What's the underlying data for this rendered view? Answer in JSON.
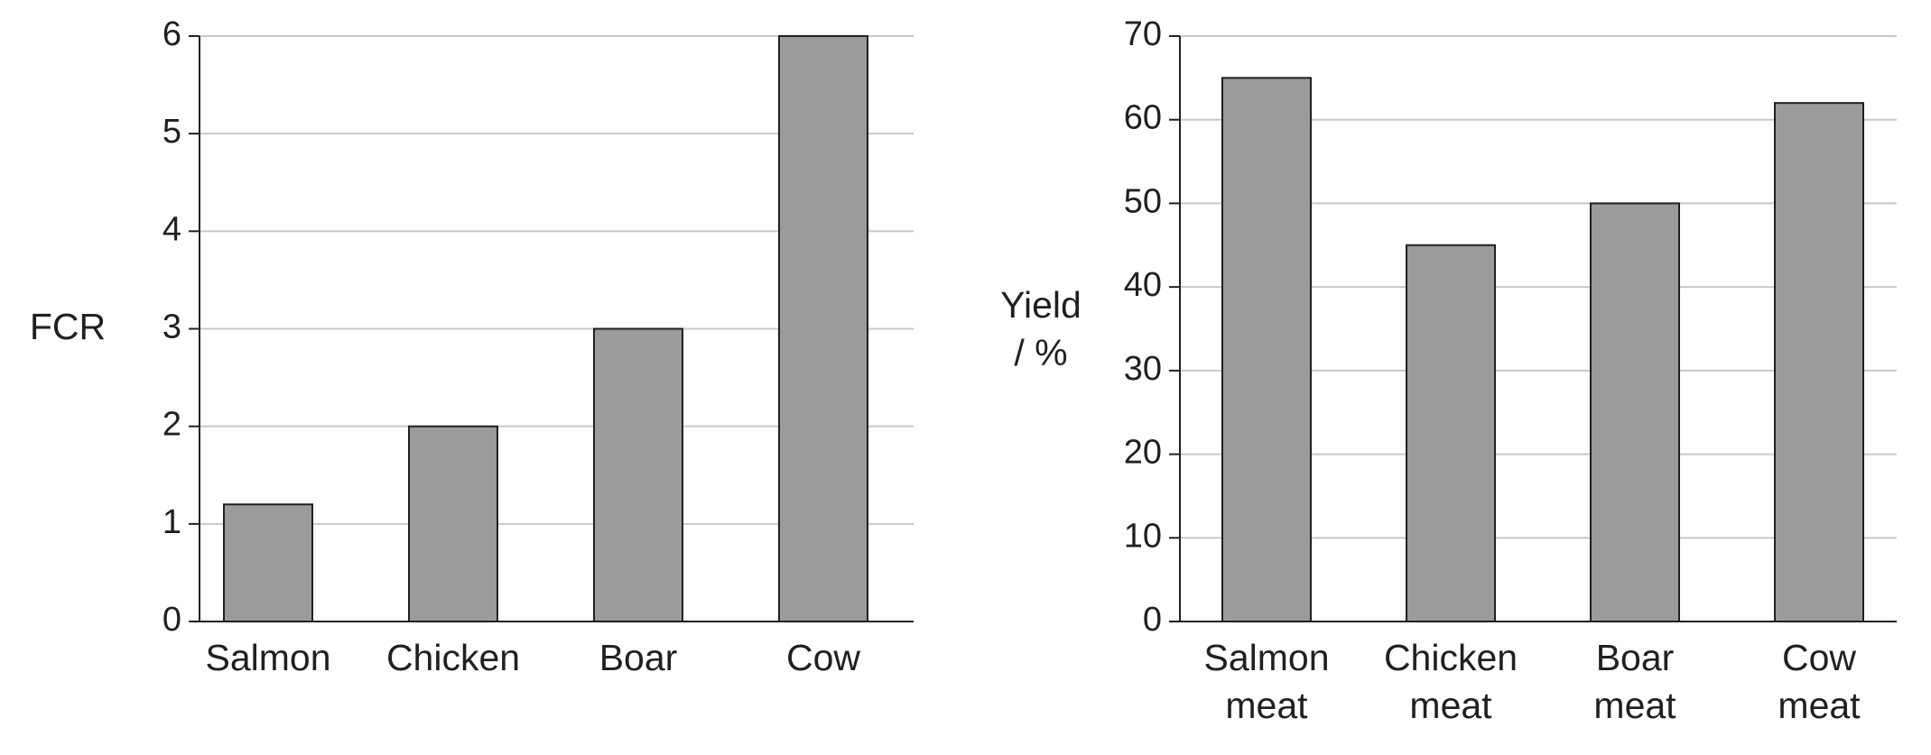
{
  "chart_data": [
    {
      "type": "bar",
      "y_label": "FCR",
      "categories": [
        "Salmon",
        "Chicken",
        "Boar",
        "Cow"
      ],
      "values": [
        1.2,
        2,
        3,
        6
      ],
      "color": "#9b9b9b",
      "ylim": [
        0,
        6
      ],
      "yticks": [
        0,
        1,
        2,
        3,
        4,
        5,
        6
      ],
      "grid": true
    },
    {
      "type": "bar",
      "y_label": "Yield / %",
      "categories": [
        "Salmon meat",
        "Chicken meat",
        "Boar meat",
        "Cow meat"
      ],
      "values": [
        65,
        45,
        50,
        62
      ],
      "color": "#9b9b9b",
      "ylim": [
        0,
        70
      ],
      "yticks": [
        0,
        10,
        20,
        30,
        40,
        50,
        60,
        70
      ],
      "grid": true
    }
  ]
}
